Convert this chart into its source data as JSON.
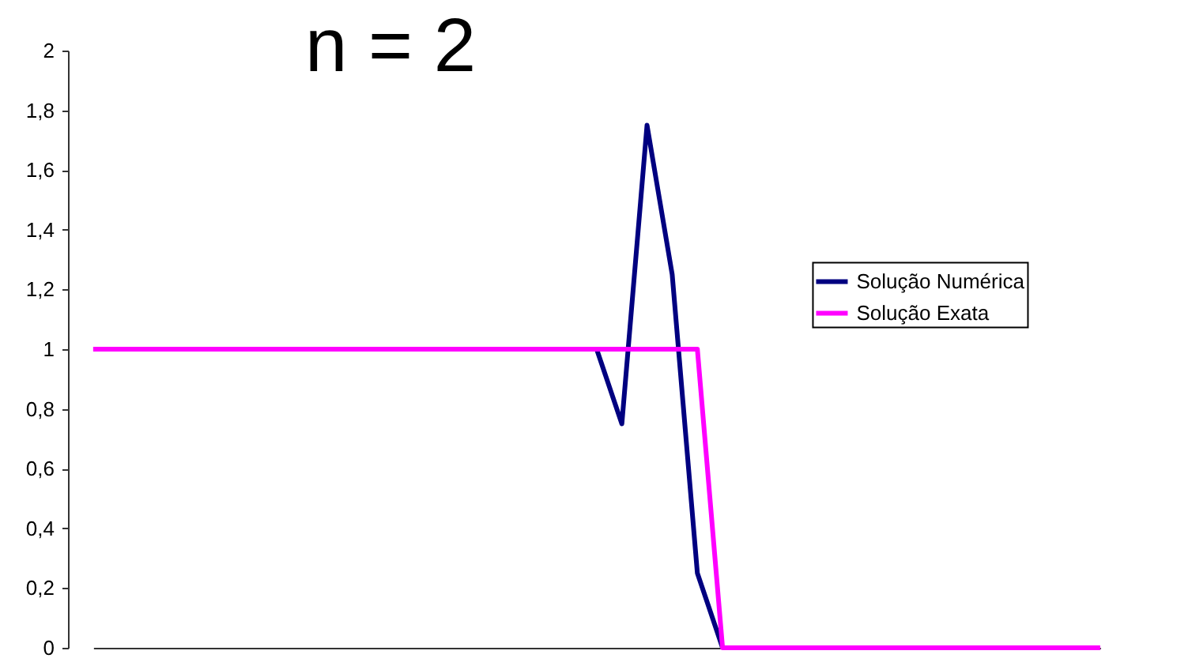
{
  "chart_data": {
    "type": "line",
    "title": "n = 2",
    "categories": [
      null,
      null,
      null,
      null,
      null,
      null,
      null,
      null,
      null,
      null,
      null,
      null,
      null,
      null,
      null,
      null,
      null,
      null,
      null,
      null,
      null,
      null,
      null,
      null,
      null,
      null,
      null,
      null,
      null,
      null,
      null,
      null,
      null,
      null,
      null,
      null,
      null,
      null,
      null,
      null,
      null
    ],
    "series": [
      {
        "name": "Solução Numérica",
        "color": "#000080",
        "values": [
          null,
          null,
          null,
          null,
          null,
          null,
          null,
          null,
          null,
          null,
          null,
          null,
          null,
          null,
          null,
          null,
          null,
          null,
          null,
          null,
          1,
          0.75,
          1.75,
          1.25,
          0.25,
          0,
          null,
          null,
          null,
          null,
          null,
          null,
          null,
          null,
          null,
          null,
          null,
          null,
          null,
          null,
          null
        ]
      },
      {
        "name": "Solução Exata",
        "color": "#ff00ff",
        "values": [
          1,
          1,
          1,
          1,
          1,
          1,
          1,
          1,
          1,
          1,
          1,
          1,
          1,
          1,
          1,
          1,
          1,
          1,
          1,
          1,
          1,
          1,
          1,
          1,
          1,
          0,
          0,
          0,
          0,
          0,
          0,
          0,
          0,
          0,
          0,
          0,
          0,
          0,
          0,
          0,
          0
        ]
      }
    ],
    "ylim": [
      0,
      2
    ],
    "yticks": [
      0,
      {
        "value": 0.2,
        "label": "0,2"
      },
      {
        "value": 0.4,
        "label": "0,4"
      },
      {
        "value": 0.6,
        "label": "0,6"
      },
      {
        "value": 0.8,
        "label": "0,8"
      },
      1,
      {
        "value": 1.2,
        "label": "1,2"
      },
      {
        "value": 1.4,
        "label": "1,4"
      },
      {
        "value": 1.6,
        "label": "1,6"
      },
      {
        "value": 1.8,
        "label": "1,8"
      },
      2
    ],
    "grid": false,
    "legend": "right",
    "tick_labels": "y",
    "line_style": "solid"
  }
}
